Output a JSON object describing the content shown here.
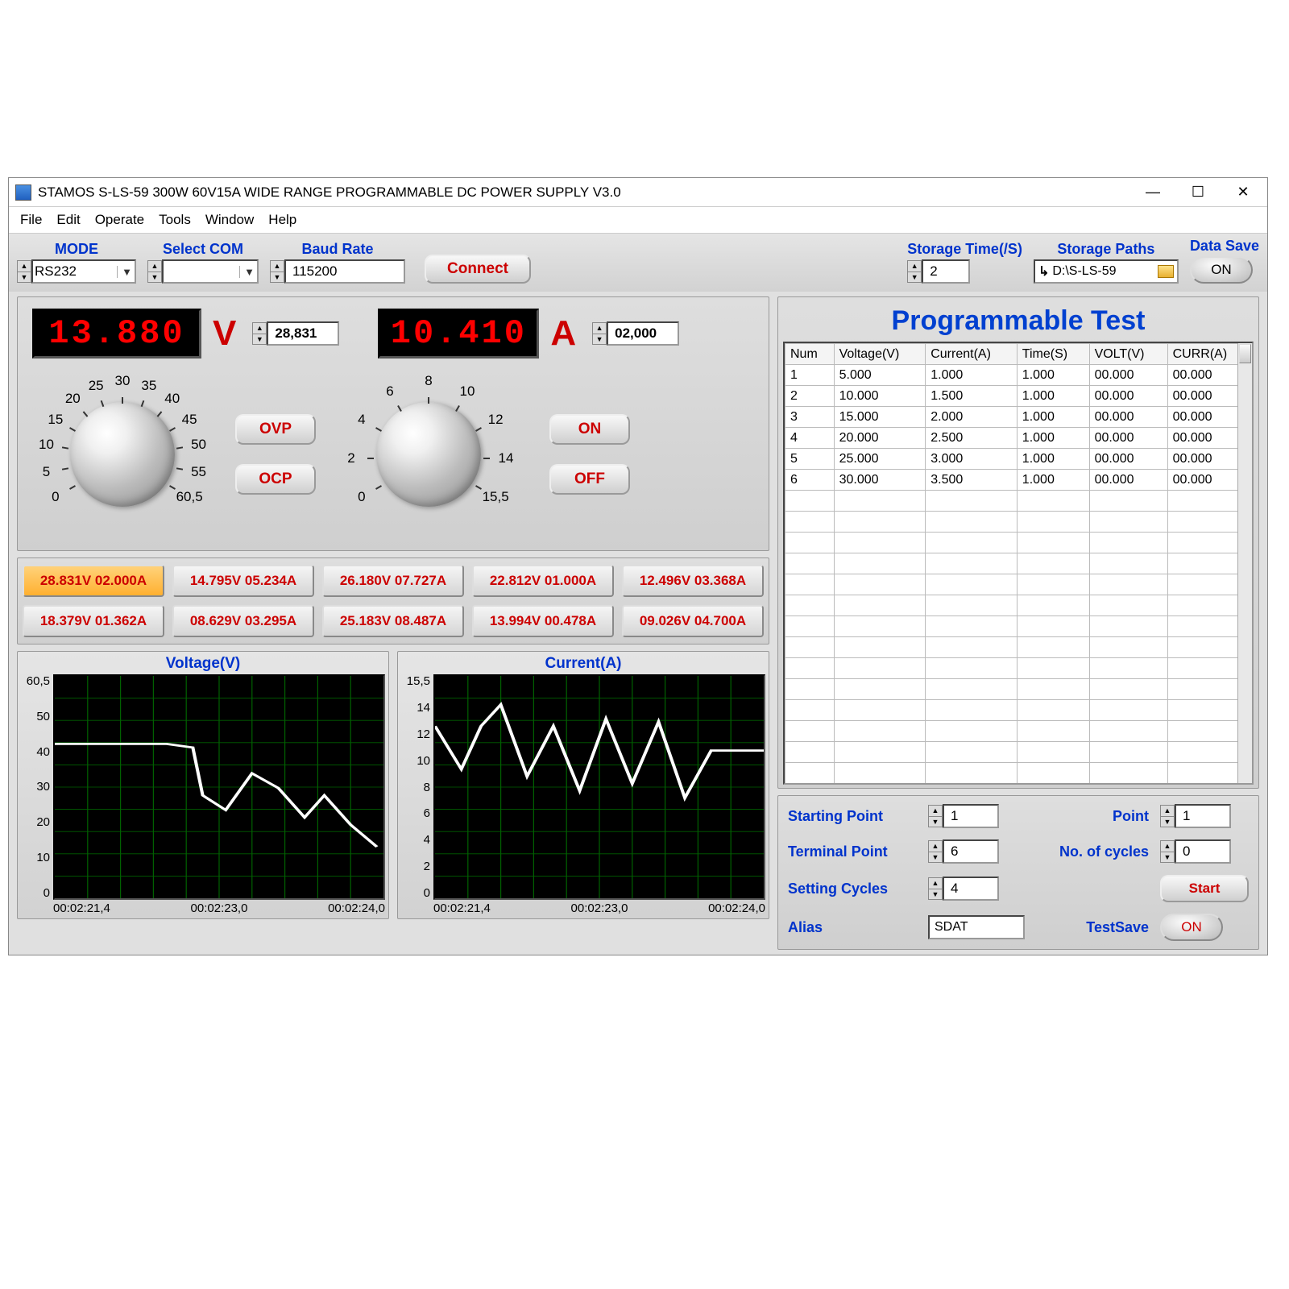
{
  "window": {
    "title": "STAMOS S-LS-59  300W 60V15A WIDE RANGE PROGRAMMABLE DC POWER SUPPLY V3.0"
  },
  "menu": [
    "File",
    "Edit",
    "Operate",
    "Tools",
    "Window",
    "Help"
  ],
  "top": {
    "mode_label": "MODE",
    "mode_value": "RS232",
    "com_label": "Select COM",
    "com_value": "",
    "baud_label": "Baud Rate",
    "baud_value": "115200",
    "connect": "Connect",
    "storage_time_label": "Storage Time(/S)",
    "storage_time_value": "2",
    "storage_path_label": "Storage Paths",
    "storage_path_value": "D:\\S-LS-59",
    "data_save_label": "Data Save",
    "data_save_btn": "ON"
  },
  "display": {
    "voltage": "13.880",
    "voltage_unit": "V",
    "voltage_set": "28,831",
    "current": "10.410",
    "current_unit": "A",
    "current_set": "02,000",
    "ovp": "OVP",
    "ocp": "OCP",
    "on": "ON",
    "off": "OFF",
    "knob_v": {
      "ticks": [
        "0",
        "5",
        "10",
        "15",
        "20",
        "25",
        "30",
        "35",
        "40",
        "45",
        "50",
        "55",
        "60,5"
      ]
    },
    "knob_a": {
      "ticks": [
        "0",
        "2",
        "4",
        "6",
        "8",
        "10",
        "12",
        "14",
        "15,5"
      ]
    }
  },
  "presets": {
    "active_index": 0,
    "items": [
      "28.831V  02.000A",
      "14.795V  05.234A",
      "26.180V  07.727A",
      "22.812V  01.000A",
      "12.496V  03.368A",
      "18.379V  01.362A",
      "08.629V  03.295A",
      "25.183V  08.487A",
      "13.994V  00.478A",
      "09.026V  04.700A"
    ]
  },
  "charts": {
    "voltage": {
      "title": "Voltage(V)",
      "ylabels": [
        "60,5",
        "50",
        "40",
        "30",
        "20",
        "10",
        "0"
      ],
      "xlabels": [
        "00:02:21,4",
        "00:02:23,0",
        "00:02:24,0"
      ],
      "ylim": [
        0,
        60.5
      ],
      "background": "#000000",
      "grid": "#006000",
      "line": "#ffffff",
      "points": [
        [
          0,
          42
        ],
        [
          0.12,
          42
        ],
        [
          0.24,
          42
        ],
        [
          0.34,
          42
        ],
        [
          0.42,
          41
        ],
        [
          0.45,
          28
        ],
        [
          0.52,
          24
        ],
        [
          0.6,
          34
        ],
        [
          0.68,
          30
        ],
        [
          0.76,
          22
        ],
        [
          0.82,
          28
        ],
        [
          0.9,
          20
        ],
        [
          0.98,
          14
        ]
      ]
    },
    "current": {
      "title": "Current(A)",
      "ylabels": [
        "15,5",
        "14",
        "12",
        "10",
        "8",
        "6",
        "4",
        "2",
        "0"
      ],
      "xlabels": [
        "00:02:21,4",
        "00:02:23,0",
        "00:02:24,0"
      ],
      "ylim": [
        0,
        15.5
      ],
      "background": "#000000",
      "grid": "#006000",
      "line": "#ffffff",
      "points": [
        [
          0,
          12
        ],
        [
          0.08,
          9
        ],
        [
          0.14,
          12
        ],
        [
          0.2,
          13.5
        ],
        [
          0.28,
          8.5
        ],
        [
          0.36,
          12
        ],
        [
          0.44,
          7.5
        ],
        [
          0.52,
          12.5
        ],
        [
          0.6,
          8
        ],
        [
          0.68,
          12.3
        ],
        [
          0.76,
          7
        ],
        [
          0.84,
          10.3
        ],
        [
          0.92,
          10.3
        ],
        [
          1.0,
          10.3
        ]
      ]
    }
  },
  "prog": {
    "title": "Programmable Test",
    "columns": [
      "Num",
      "Voltage(V)",
      "Current(A)",
      "Time(S)",
      "VOLT(V)",
      "CURR(A)"
    ],
    "rows": [
      [
        "1",
        "5.000",
        "1.000",
        "1.000",
        "00.000",
        "00.000"
      ],
      [
        "2",
        "10.000",
        "1.500",
        "1.000",
        "00.000",
        "00.000"
      ],
      [
        "3",
        "15.000",
        "2.000",
        "1.000",
        "00.000",
        "00.000"
      ],
      [
        "4",
        "20.000",
        "2.500",
        "1.000",
        "00.000",
        "00.000"
      ],
      [
        "5",
        "25.000",
        "3.000",
        "1.000",
        "00.000",
        "00.000"
      ],
      [
        "6",
        "30.000",
        "3.500",
        "1.000",
        "00.000",
        "00.000"
      ]
    ],
    "starting_point_label": "Starting Point",
    "starting_point": "1",
    "terminal_point_label": "Terminal Point",
    "terminal_point": "6",
    "setting_cycles_label": "Setting Cycles",
    "setting_cycles": "4",
    "alias_label": "Alias",
    "alias": "SDAT",
    "point_label": "Point",
    "point": "1",
    "cycles_label": "No. of cycles",
    "cycles": "0",
    "start": "Start",
    "testsave_label": "TestSave",
    "testsave_btn": "ON"
  }
}
